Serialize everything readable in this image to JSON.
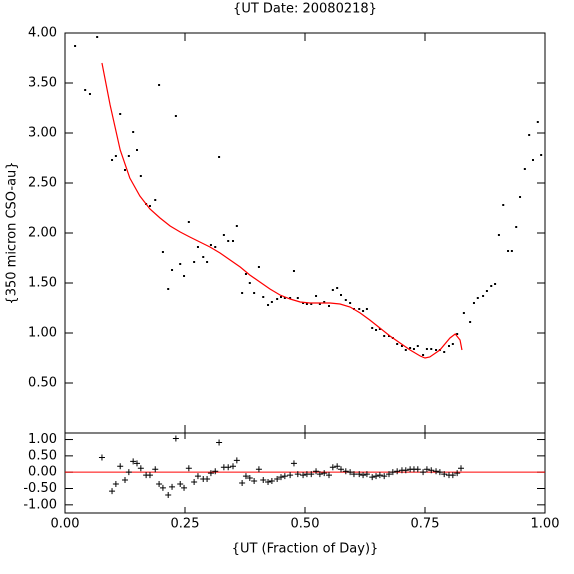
{
  "chart_data": [
    {
      "type": "scatter",
      "title": "{UT Date: 20080218}",
      "ylabel": "{350 micron CSO-au}",
      "xlim": [
        0,
        1
      ],
      "ylim": [
        0,
        4
      ],
      "yticks": [
        {
          "value": 0.5,
          "label": "0.50"
        },
        {
          "value": 1,
          "label": "1.00"
        },
        {
          "value": 1.5,
          "label": "1.50"
        },
        {
          "value": 2,
          "label": "2.00"
        },
        {
          "value": 2.5,
          "label": "2.50"
        },
        {
          "value": 3,
          "label": "3.00"
        },
        {
          "value": 3.5,
          "label": "3.50"
        },
        {
          "value": 4,
          "label": "4.00"
        }
      ],
      "series": [
        {
          "style": "dot",
          "color": "#000000",
          "x": [
            0.021,
            0.042,
            0.052,
            0.067,
            0.098,
            0.106,
            0.115,
            0.125,
            0.133,
            0.142,
            0.15,
            0.158,
            0.169,
            0.177,
            0.188,
            0.196,
            0.204,
            0.215,
            0.223,
            0.231,
            0.24,
            0.248,
            0.258,
            0.269,
            0.277,
            0.288,
            0.296,
            0.304,
            0.313,
            0.321,
            0.331,
            0.34,
            0.35,
            0.358,
            0.369,
            0.377,
            0.385,
            0.394,
            0.404,
            0.413,
            0.423,
            0.431,
            0.442,
            0.45,
            0.458,
            0.469,
            0.477,
            0.485,
            0.496,
            0.504,
            0.513,
            0.523,
            0.531,
            0.54,
            0.55,
            0.558,
            0.567,
            0.575,
            0.585,
            0.594,
            0.602,
            0.613,
            0.621,
            0.629,
            0.64,
            0.648,
            0.656,
            0.665,
            0.675,
            0.683,
            0.692,
            0.702,
            0.71,
            0.719,
            0.727,
            0.735,
            0.746,
            0.754,
            0.763,
            0.773,
            0.781,
            0.79,
            0.8,
            0.808,
            0.817,
            0.831,
            0.844,
            0.852,
            0.86,
            0.871,
            0.879,
            0.888,
            0.896,
            0.904,
            0.913,
            0.923,
            0.931,
            0.94,
            0.948,
            0.958,
            0.967,
            0.975,
            0.985,
            0.992
          ],
          "values": [
            3.87,
            3.43,
            3.39,
            3.96,
            2.73,
            2.77,
            3.19,
            2.63,
            2.77,
            3.01,
            2.83,
            2.57,
            2.29,
            2.27,
            2.33,
            3.48,
            1.81,
            1.44,
            1.63,
            3.17,
            1.69,
            1.57,
            2.11,
            1.71,
            1.86,
            1.76,
            1.71,
            1.88,
            1.86,
            2.76,
            1.98,
            1.92,
            1.92,
            2.07,
            1.4,
            1.59,
            1.5,
            1.4,
            1.66,
            1.36,
            1.28,
            1.31,
            1.34,
            1.36,
            1.35,
            1.35,
            1.62,
            1.35,
            1.3,
            1.29,
            1.29,
            1.37,
            1.29,
            1.31,
            1.27,
            1.43,
            1.45,
            1.38,
            1.33,
            1.3,
            1.24,
            1.24,
            1.22,
            1.24,
            1.05,
            1.03,
            1.04,
            0.97,
            0.97,
            0.95,
            0.89,
            0.87,
            0.83,
            0.85,
            0.84,
            0.87,
            0.78,
            0.84,
            0.84,
            0.83,
            0.83,
            0.81,
            0.87,
            0.89,
            0.99,
            1.2,
            1.11,
            1.3,
            1.35,
            1.37,
            1.42,
            1.47,
            1.49,
            1.98,
            2.28,
            1.82,
            1.82,
            2.06,
            2.36,
            2.64,
            2.98,
            2.73,
            3.11,
            2.78
          ]
        },
        {
          "style": "line",
          "color": "#ff0000",
          "x": [
            0.077,
            0.094,
            0.115,
            0.135,
            0.156,
            0.177,
            0.198,
            0.219,
            0.24,
            0.26,
            0.281,
            0.302,
            0.323,
            0.344,
            0.365,
            0.385,
            0.406,
            0.427,
            0.448,
            0.469,
            0.49,
            0.51,
            0.531,
            0.552,
            0.573,
            0.594,
            0.615,
            0.635,
            0.656,
            0.677,
            0.698,
            0.719,
            0.74,
            0.75,
            0.76,
            0.781,
            0.802,
            0.813,
            0.823,
            0.827
          ],
          "values": [
            3.7,
            3.28,
            2.83,
            2.55,
            2.37,
            2.24,
            2.15,
            2.07,
            2.01,
            1.96,
            1.91,
            1.86,
            1.8,
            1.73,
            1.66,
            1.58,
            1.51,
            1.44,
            1.38,
            1.34,
            1.31,
            1.3,
            1.3,
            1.3,
            1.29,
            1.26,
            1.2,
            1.13,
            1.05,
            0.97,
            0.9,
            0.83,
            0.77,
            0.75,
            0.76,
            0.83,
            0.95,
            0.99,
            0.93,
            0.83
          ]
        }
      ]
    },
    {
      "type": "scatter",
      "xlabel": "{UT (Fraction of Day)}",
      "xlim": [
        0,
        1
      ],
      "ylim": [
        -1.25,
        1.2
      ],
      "reference_line": 0,
      "reference_color": "#ff0000",
      "xticks": [
        {
          "value": 0,
          "label": "0.00"
        },
        {
          "value": 0.25,
          "label": "0.25"
        },
        {
          "value": 0.5,
          "label": "0.50"
        },
        {
          "value": 0.75,
          "label": "0.75"
        },
        {
          "value": 1,
          "label": "1.00"
        }
      ],
      "yticks": [
        {
          "value": -1,
          "label": "-1.00"
        },
        {
          "value": -0.5,
          "label": "-0.50"
        },
        {
          "value": 0,
          "label": "0.00"
        },
        {
          "value": 0.5,
          "label": "0.50"
        },
        {
          "value": 1,
          "label": "1.00"
        }
      ],
      "series": [
        {
          "style": "plus",
          "color": "#000000",
          "x": [
            0.077,
            0.098,
            0.106,
            0.115,
            0.125,
            0.133,
            0.142,
            0.15,
            0.158,
            0.169,
            0.177,
            0.188,
            0.196,
            0.204,
            0.215,
            0.223,
            0.231,
            0.24,
            0.248,
            0.258,
            0.269,
            0.277,
            0.288,
            0.296,
            0.304,
            0.313,
            0.321,
            0.331,
            0.34,
            0.35,
            0.358,
            0.369,
            0.377,
            0.385,
            0.394,
            0.404,
            0.413,
            0.423,
            0.431,
            0.442,
            0.45,
            0.458,
            0.469,
            0.477,
            0.485,
            0.496,
            0.504,
            0.513,
            0.523,
            0.531,
            0.54,
            0.55,
            0.558,
            0.567,
            0.575,
            0.585,
            0.594,
            0.602,
            0.613,
            0.621,
            0.629,
            0.64,
            0.648,
            0.656,
            0.665,
            0.675,
            0.683,
            0.692,
            0.702,
            0.71,
            0.719,
            0.727,
            0.735,
            0.746,
            0.754,
            0.763,
            0.773,
            0.781,
            0.79,
            0.8,
            0.808,
            0.817,
            0.825
          ],
          "values": [
            0.45,
            -0.58,
            -0.36,
            0.18,
            -0.24,
            0.0,
            0.33,
            0.27,
            0.12,
            -0.09,
            -0.09,
            0.09,
            -0.36,
            -0.48,
            -0.7,
            -0.45,
            1.03,
            -0.36,
            -0.48,
            0.12,
            -0.3,
            -0.12,
            -0.21,
            -0.21,
            -0.03,
            0.03,
            0.91,
            0.15,
            0.15,
            0.18,
            0.36,
            -0.33,
            -0.12,
            -0.18,
            -0.27,
            0.09,
            -0.24,
            -0.3,
            -0.27,
            -0.21,
            -0.15,
            -0.12,
            -0.09,
            0.27,
            -0.06,
            -0.09,
            -0.06,
            -0.06,
            0.03,
            -0.06,
            -0.03,
            -0.09,
            0.15,
            0.18,
            0.09,
            0.03,
            0.0,
            -0.06,
            -0.06,
            -0.09,
            -0.06,
            -0.15,
            -0.12,
            -0.09,
            -0.12,
            -0.06,
            0.0,
            0.03,
            0.06,
            0.06,
            0.09,
            0.09,
            0.09,
            0.0,
            0.09,
            0.06,
            0.03,
            0.0,
            -0.06,
            -0.09,
            -0.09,
            -0.03,
            0.12
          ]
        }
      ]
    }
  ]
}
